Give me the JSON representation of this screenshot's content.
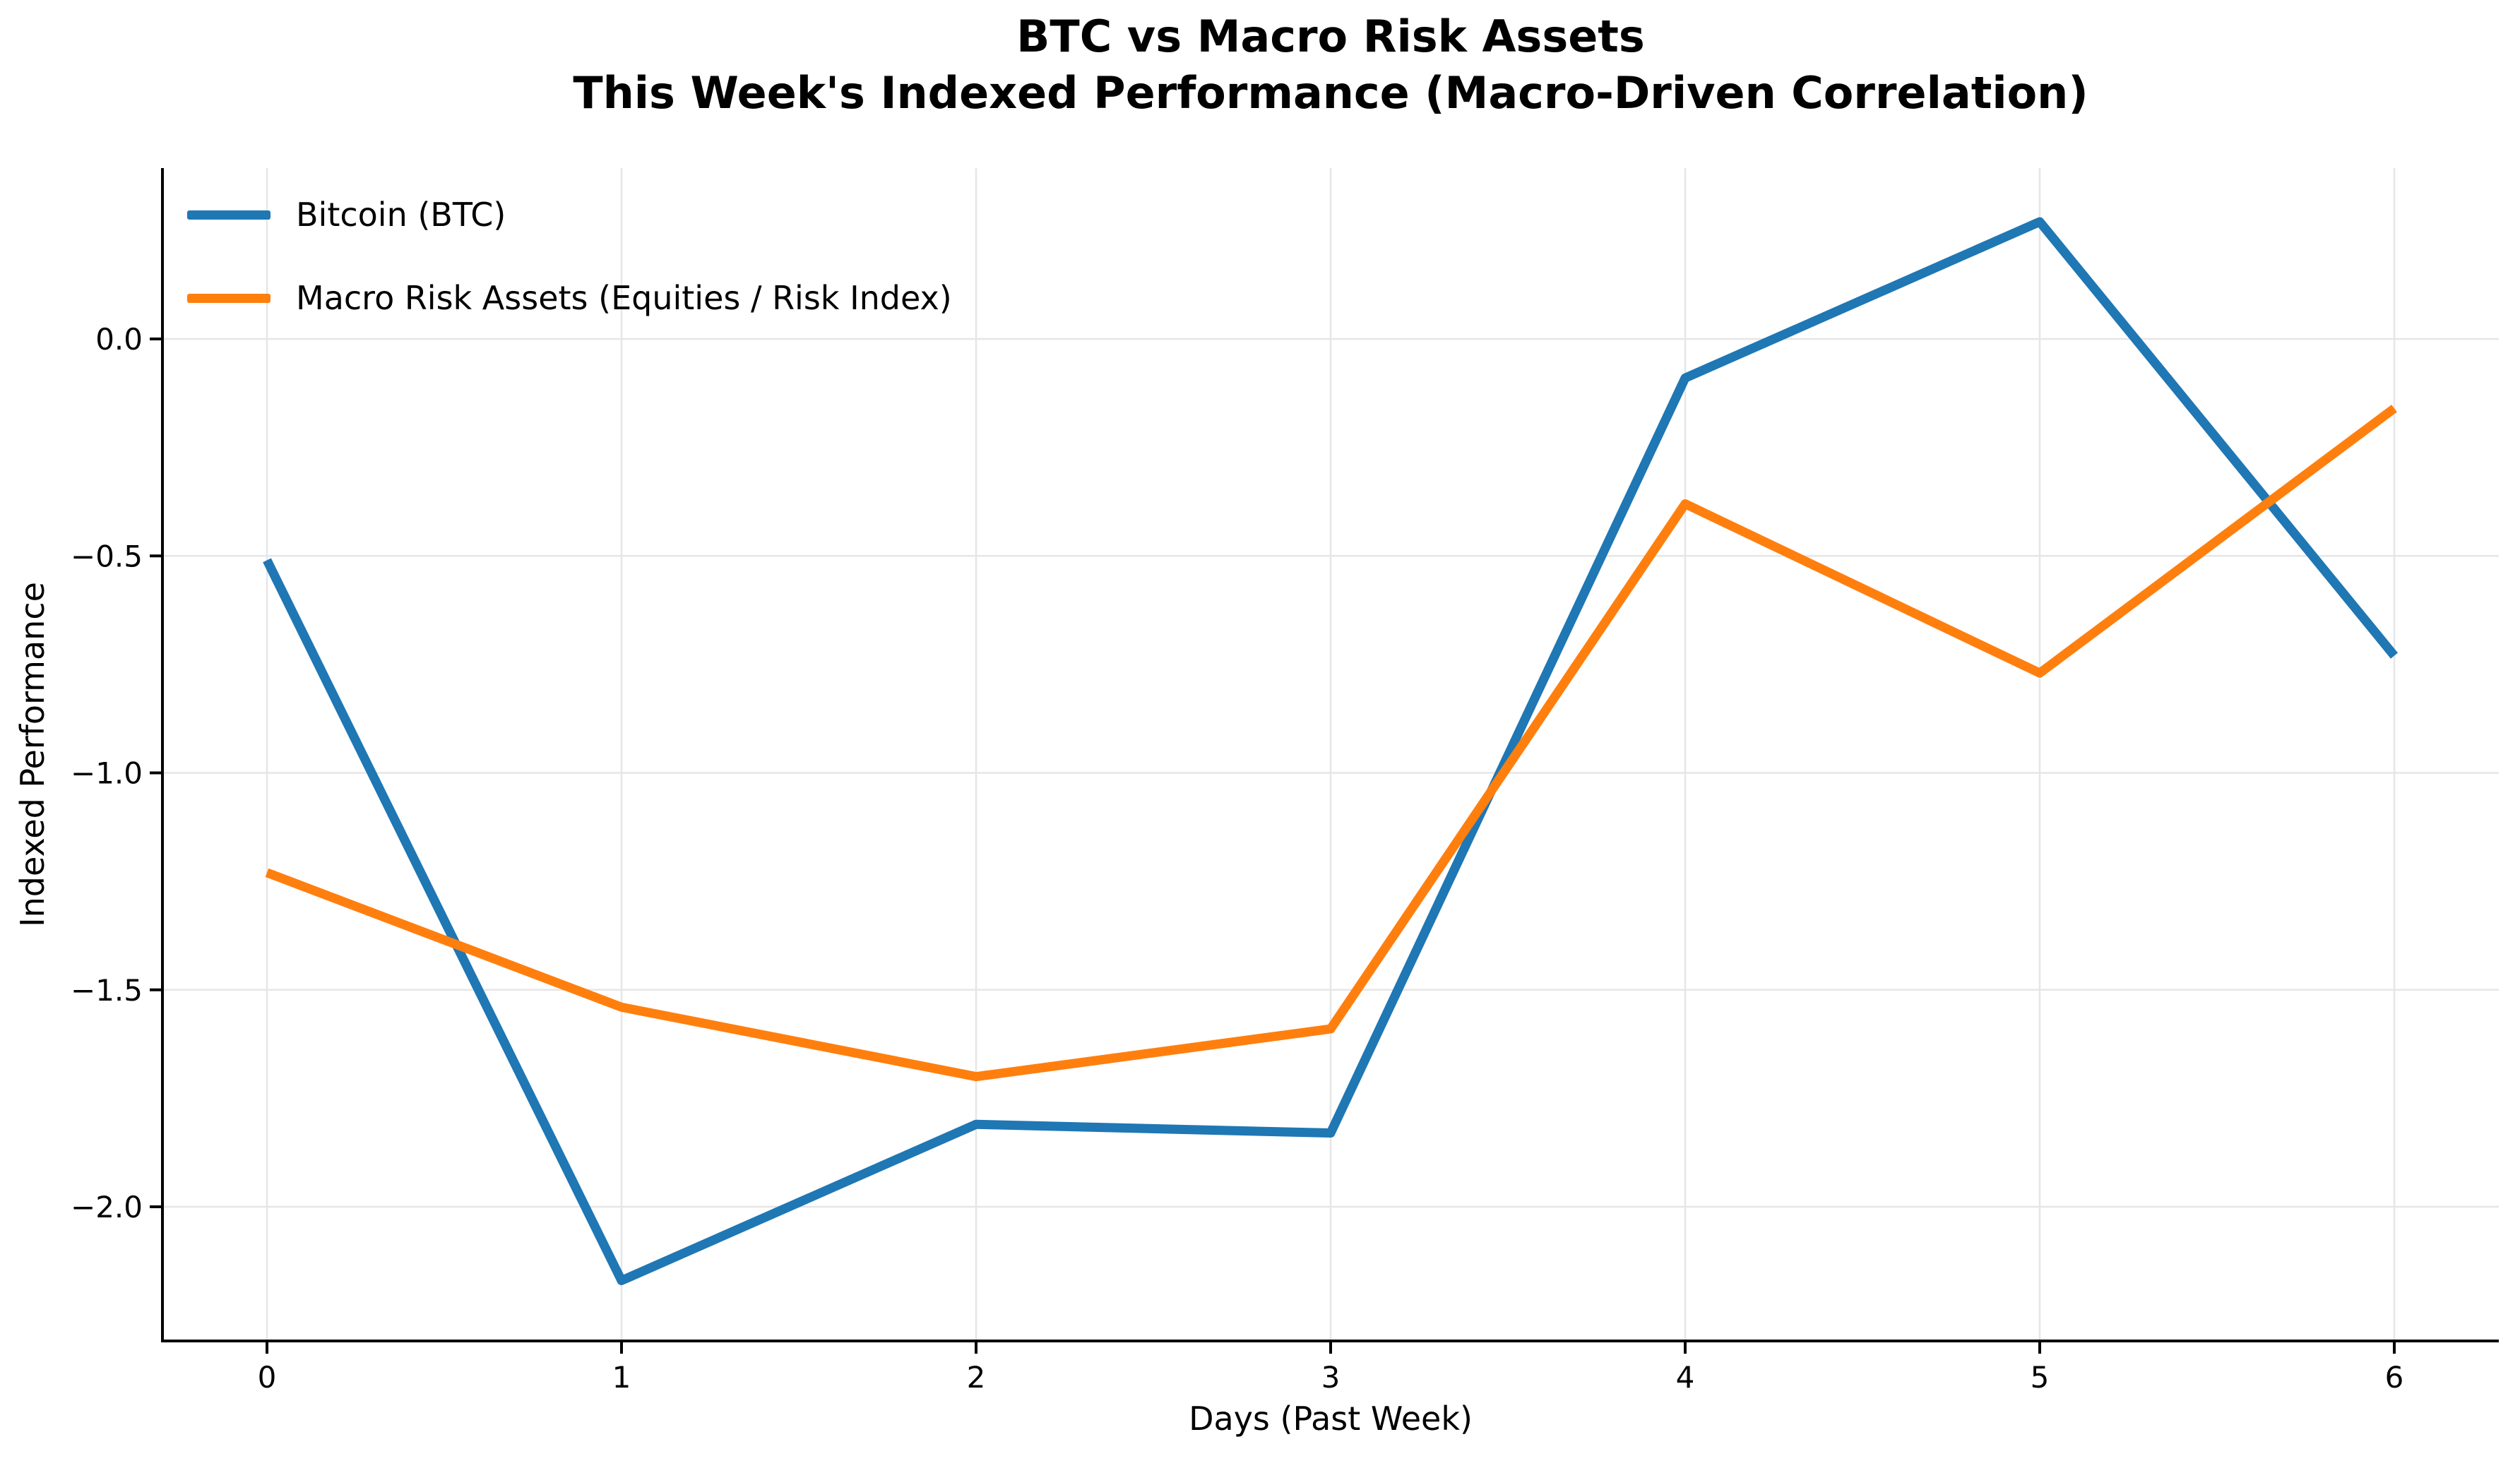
{
  "title": {
    "line1": "BTC vs Macro Risk Assets",
    "line2": "This Week's Indexed Performance (Macro-Driven Correlation)"
  },
  "chart_data": {
    "type": "line",
    "x": [
      0,
      1,
      2,
      3,
      4,
      5,
      6
    ],
    "x_tick_labels": [
      "0",
      "1",
      "2",
      "3",
      "4",
      "5",
      "6"
    ],
    "y_ticks": [
      0.0,
      -0.5,
      -1.0,
      -1.5,
      -2.0
    ],
    "y_tick_labels": [
      "0.0",
      "−0.5",
      "−1.0",
      "−1.5",
      "−2.0"
    ],
    "xlabel": "Days (Past Week)",
    "ylabel": "Indexed Performance",
    "xlim": [
      -0.3,
      6.3
    ],
    "ylim": [
      -2.31,
      0.39
    ],
    "grid": true,
    "legend_position": "upper left",
    "series": [
      {
        "name": "Bitcoin (BTC)",
        "color": "#1f77b4",
        "values": [
          -0.51,
          -2.17,
          -1.81,
          -1.83,
          -0.09,
          0.27,
          -0.73
        ]
      },
      {
        "name": "Macro Risk Assets (Equities / Risk Index)",
        "color": "#ff7f0e",
        "values": [
          -1.23,
          -1.54,
          -1.7,
          -1.59,
          -0.38,
          -0.77,
          -0.16
        ]
      }
    ]
  }
}
